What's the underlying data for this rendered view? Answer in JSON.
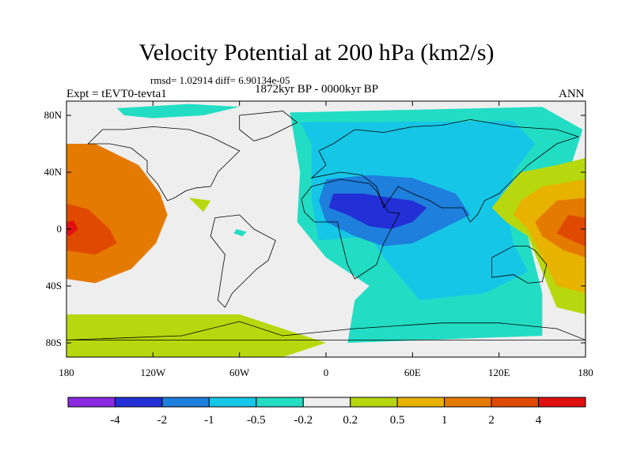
{
  "figure": {
    "title": "Velocity Potential at 200 hPa (km2/s)",
    "stats": "rmsd= 1.02914  diff= 6.90134e-05",
    "period": "1872kyr BP - 0000kyr BP",
    "experiment": "Expt = tEVT0-tevta1",
    "season": "ANN"
  },
  "axes": {
    "lat_labels": [
      "80N",
      "40N",
      "0",
      "40S",
      "80S"
    ],
    "lat_values": [
      80,
      40,
      0,
      -40,
      -80
    ],
    "lon_labels": [
      "180",
      "120W",
      "60W",
      "0",
      "60E",
      "120E",
      "180"
    ],
    "lon_values": [
      -180,
      -120,
      -60,
      0,
      60,
      120,
      180
    ],
    "lon_range": [
      -180,
      180
    ],
    "lat_range": [
      -90,
      90
    ]
  },
  "colorbar": {
    "levels": [
      "-4",
      "-2",
      "-1",
      "-0.5",
      "-0.2",
      "0.2",
      "0.5",
      "1",
      "2",
      "4"
    ],
    "colors": [
      "#8a2be2",
      "#2230d6",
      "#1e7fdc",
      "#16c6e6",
      "#22ddc4",
      "#eeeeee",
      "#b7d80e",
      "#e8b200",
      "#e57a00",
      "#e04a00",
      "#e01010"
    ]
  },
  "field": {
    "variable": "velocity potential",
    "pressure_level_hPa": 200,
    "units": "km2/s",
    "background_class": 5,
    "regions": [
      {
        "name": "northern-land-white",
        "class": 5,
        "points": [
          [
            -160,
            85
          ],
          [
            -60,
            85
          ],
          [
            -10,
            82
          ],
          [
            -20,
            76
          ],
          [
            -40,
            72
          ],
          [
            -75,
            65
          ],
          [
            -110,
            60
          ],
          [
            -150,
            64
          ],
          [
            -175,
            70
          ]
        ]
      },
      {
        "name": "arctic-teal-band",
        "class": 4,
        "points": [
          [
            -145,
            85
          ],
          [
            -95,
            88
          ],
          [
            -60,
            86
          ],
          [
            -85,
            80
          ],
          [
            -120,
            78
          ],
          [
            -140,
            80
          ]
        ]
      },
      {
        "name": "pacific-east-orange",
        "class": 8,
        "points": [
          [
            -180,
            60
          ],
          [
            -160,
            60
          ],
          [
            -130,
            45
          ],
          [
            -115,
            25
          ],
          [
            -110,
            10
          ],
          [
            -118,
            -10
          ],
          [
            -135,
            -28
          ],
          [
            -160,
            -38
          ],
          [
            -180,
            -35
          ]
        ]
      },
      {
        "name": "pacific-east-dark-orange",
        "class": 9,
        "points": [
          [
            -180,
            18
          ],
          [
            -165,
            14
          ],
          [
            -150,
            0
          ],
          [
            -145,
            -10
          ],
          [
            -160,
            -18
          ],
          [
            -180,
            -15
          ]
        ]
      },
      {
        "name": "pacific-east-red",
        "class": 10,
        "points": [
          [
            -180,
            5
          ],
          [
            -175,
            6
          ],
          [
            -172,
            0
          ],
          [
            -178,
            -5
          ],
          [
            -180,
            -3
          ]
        ]
      },
      {
        "name": "north-atlantic-white",
        "class": 5,
        "points": [
          [
            -110,
            30
          ],
          [
            -80,
            28
          ],
          [
            -60,
            20
          ],
          [
            -40,
            15
          ],
          [
            -15,
            10
          ],
          [
            -10,
            -5
          ],
          [
            -30,
            -10
          ],
          [
            -45,
            -12
          ],
          [
            -30,
            -3
          ],
          [
            -50,
            5
          ],
          [
            -80,
            10
          ]
        ]
      },
      {
        "name": "caribbean-green",
        "class": 6,
        "points": [
          [
            -95,
            22
          ],
          [
            -80,
            20
          ],
          [
            -85,
            12
          ]
        ]
      },
      {
        "name": "caribbean-teal",
        "class": 4,
        "points": [
          [
            -62,
            0
          ],
          [
            -55,
            -2
          ],
          [
            -58,
            -5
          ],
          [
            -64,
            -3
          ]
        ]
      },
      {
        "name": "atlantic-white-tongue",
        "class": 5,
        "points": [
          [
            -40,
            82
          ],
          [
            -25,
            80
          ],
          [
            -10,
            60
          ],
          [
            -15,
            35
          ],
          [
            -25,
            15
          ],
          [
            -30,
            0
          ],
          [
            -30,
            -30
          ],
          [
            -10,
            -60
          ],
          [
            10,
            -90
          ],
          [
            160,
            -90
          ],
          [
            158,
            -60
          ],
          [
            150,
            -40
          ],
          [
            140,
            -10
          ],
          [
            130,
            0
          ],
          [
            120,
            10
          ],
          [
            118,
            20
          ],
          [
            128,
            35
          ],
          [
            150,
            55
          ],
          [
            160,
            72
          ],
          [
            170,
            85
          ]
        ]
      },
      {
        "name": "africa-eurasia-teal",
        "class": 4,
        "points": [
          [
            -25,
            82
          ],
          [
            150,
            86
          ],
          [
            178,
            70
          ],
          [
            170,
            45
          ],
          [
            150,
            30
          ],
          [
            130,
            10
          ],
          [
            140,
            -5
          ],
          [
            150,
            -45
          ],
          [
            150,
            -75
          ],
          [
            15,
            -80
          ],
          [
            20,
            -50
          ],
          [
            30,
            -40
          ],
          [
            0,
            -20
          ],
          [
            -20,
            5
          ],
          [
            -18,
            40
          ]
        ]
      },
      {
        "name": "eurasia-light-blue",
        "class": 3,
        "points": [
          [
            -18,
            75
          ],
          [
            130,
            76
          ],
          [
            145,
            60
          ],
          [
            130,
            40
          ],
          [
            125,
            15
          ],
          [
            130,
            -10
          ],
          [
            140,
            -30
          ],
          [
            110,
            -45
          ],
          [
            65,
            -50
          ],
          [
            40,
            -20
          ],
          [
            30,
            -5
          ],
          [
            -5,
            -8
          ],
          [
            -10,
            20
          ],
          [
            -10,
            60
          ]
        ]
      },
      {
        "name": "africa-blue",
        "class": 2,
        "points": [
          [
            0,
            35
          ],
          [
            30,
            38
          ],
          [
            60,
            36
          ],
          [
            90,
            25
          ],
          [
            100,
            10
          ],
          [
            80,
            0
          ],
          [
            60,
            -10
          ],
          [
            40,
            -12
          ],
          [
            20,
            -5
          ],
          [
            0,
            5
          ],
          [
            -5,
            20
          ]
        ]
      },
      {
        "name": "sahara-dark-blue",
        "class": 1,
        "points": [
          [
            5,
            25
          ],
          [
            25,
            25
          ],
          [
            45,
            22
          ],
          [
            60,
            20
          ],
          [
            70,
            15
          ],
          [
            60,
            5
          ],
          [
            45,
            0
          ],
          [
            30,
            2
          ],
          [
            15,
            10
          ],
          [
            2,
            15
          ]
        ]
      },
      {
        "name": "west-pacific-green",
        "class": 6,
        "points": [
          [
            135,
            40
          ],
          [
            160,
            45
          ],
          [
            180,
            50
          ],
          [
            180,
            -60
          ],
          [
            160,
            -55
          ],
          [
            150,
            -30
          ],
          [
            140,
            -5
          ],
          [
            125,
            5
          ],
          [
            115,
            15
          ],
          [
            125,
            28
          ]
        ]
      },
      {
        "name": "west-pacific-orange",
        "class": 7,
        "points": [
          [
            150,
            30
          ],
          [
            180,
            35
          ],
          [
            180,
            -45
          ],
          [
            160,
            -40
          ],
          [
            150,
            -20
          ],
          [
            140,
            0
          ],
          [
            130,
            10
          ],
          [
            135,
            20
          ]
        ]
      },
      {
        "name": "west-pacific-dark-orange",
        "class": 8,
        "points": [
          [
            160,
            20
          ],
          [
            180,
            22
          ],
          [
            180,
            -20
          ],
          [
            165,
            -15
          ],
          [
            150,
            -5
          ],
          [
            145,
            5
          ]
        ]
      },
      {
        "name": "west-pacific-red",
        "class": 9,
        "points": [
          [
            168,
            10
          ],
          [
            180,
            8
          ],
          [
            180,
            -12
          ],
          [
            170,
            -8
          ],
          [
            160,
            -3
          ]
        ]
      },
      {
        "name": "southern-ocean-green",
        "class": 6,
        "points": [
          [
            -180,
            -60
          ],
          [
            -60,
            -60
          ],
          [
            0,
            -80
          ],
          [
            -30,
            -90
          ],
          [
            -180,
            -90
          ]
        ]
      }
    ],
    "coastlines": [
      {
        "name": "north-america",
        "points": [
          [
            -165,
            60
          ],
          [
            -155,
            70
          ],
          [
            -140,
            70
          ],
          [
            -120,
            72
          ],
          [
            -95,
            70
          ],
          [
            -80,
            65
          ],
          [
            -70,
            60
          ],
          [
            -60,
            55
          ],
          [
            -70,
            45
          ],
          [
            -75,
            40
          ],
          [
            -80,
            30
          ],
          [
            -90,
            29
          ],
          [
            -97,
            27
          ],
          [
            -105,
            22
          ],
          [
            -110,
            20
          ],
          [
            -117,
            32
          ],
          [
            -124,
            40
          ],
          [
            -124,
            48
          ],
          [
            -135,
            57
          ],
          [
            -150,
            60
          ]
        ]
      },
      {
        "name": "south-america",
        "points": [
          [
            -77,
            8
          ],
          [
            -60,
            10
          ],
          [
            -50,
            0
          ],
          [
            -35,
            -8
          ],
          [
            -40,
            -22
          ],
          [
            -48,
            -28
          ],
          [
            -55,
            -35
          ],
          [
            -65,
            -45
          ],
          [
            -70,
            -55
          ],
          [
            -75,
            -50
          ],
          [
            -72,
            -30
          ],
          [
            -70,
            -18
          ],
          [
            -80,
            -5
          ]
        ]
      },
      {
        "name": "greenland",
        "points": [
          [
            -60,
            80
          ],
          [
            -30,
            83
          ],
          [
            -20,
            75
          ],
          [
            -40,
            65
          ],
          [
            -50,
            62
          ],
          [
            -60,
            70
          ]
        ]
      },
      {
        "name": "africa",
        "points": [
          [
            -17,
            21
          ],
          [
            -10,
            30
          ],
          [
            10,
            35
          ],
          [
            30,
            32
          ],
          [
            35,
            27
          ],
          [
            43,
            12
          ],
          [
            51,
            11
          ],
          [
            40,
            -10
          ],
          [
            35,
            -25
          ],
          [
            20,
            -35
          ],
          [
            15,
            -25
          ],
          [
            10,
            -5
          ],
          [
            8,
            5
          ],
          [
            -8,
            5
          ],
          [
            -15,
            12
          ]
        ]
      },
      {
        "name": "eurasia",
        "points": [
          [
            -10,
            36
          ],
          [
            0,
            45
          ],
          [
            -5,
            55
          ],
          [
            5,
            60
          ],
          [
            20,
            70
          ],
          [
            40,
            68
          ],
          [
            60,
            72
          ],
          [
            80,
            73
          ],
          [
            100,
            77
          ],
          [
            130,
            72
          ],
          [
            160,
            70
          ],
          [
            175,
            65
          ],
          [
            160,
            60
          ],
          [
            140,
            45
          ],
          [
            130,
            35
          ],
          [
            120,
            25
          ],
          [
            110,
            20
          ],
          [
            105,
            10
          ],
          [
            100,
            5
          ],
          [
            95,
            15
          ],
          [
            80,
            15
          ],
          [
            72,
            20
          ],
          [
            60,
            25
          ],
          [
            50,
            30
          ],
          [
            40,
            15
          ],
          [
            35,
            30
          ],
          [
            25,
            38
          ],
          [
            10,
            40
          ]
        ]
      },
      {
        "name": "australia",
        "points": [
          [
            115,
            -20
          ],
          [
            130,
            -12
          ],
          [
            140,
            -12
          ],
          [
            145,
            -15
          ],
          [
            153,
            -25
          ],
          [
            150,
            -37
          ],
          [
            140,
            -38
          ],
          [
            130,
            -32
          ],
          [
            115,
            -34
          ]
        ]
      },
      {
        "name": "antarctica",
        "points": [
          [
            -180,
            -78
          ],
          [
            -100,
            -75
          ],
          [
            -60,
            -65
          ],
          [
            -30,
            -75
          ],
          [
            20,
            -70
          ],
          [
            80,
            -66
          ],
          [
            120,
            -66
          ],
          [
            160,
            -70
          ],
          [
            180,
            -78
          ]
        ]
      }
    ]
  }
}
